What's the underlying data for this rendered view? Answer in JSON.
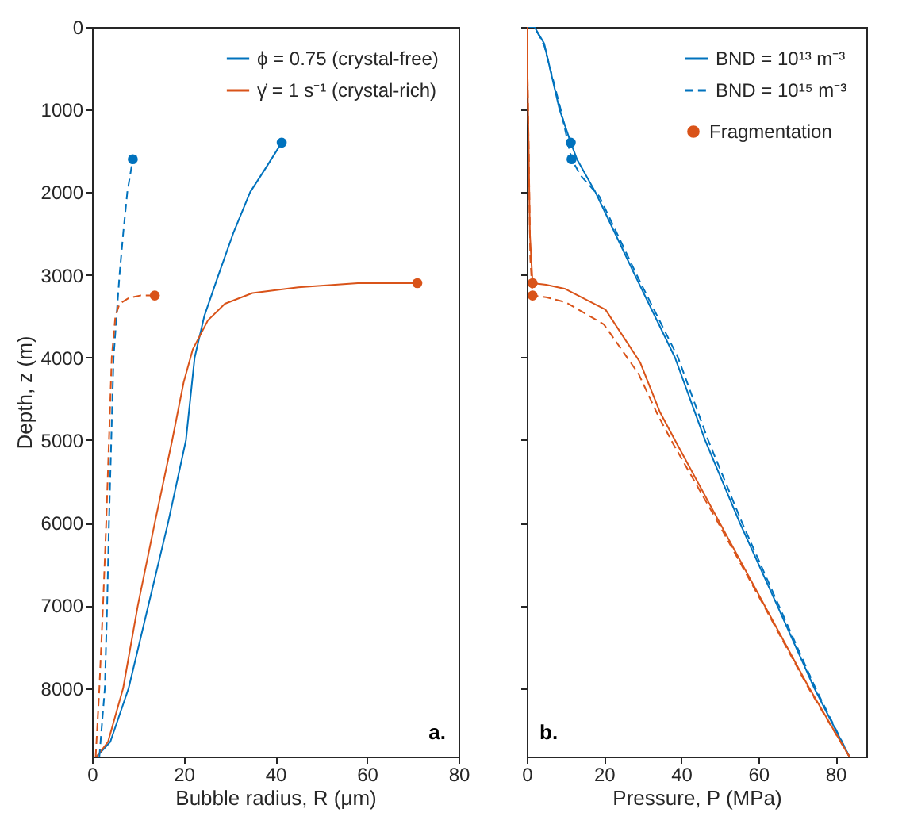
{
  "chart_data": [
    {
      "type": "line",
      "xlabel": "Bubble radius, R (μm)",
      "ylabel": "Depth, z (m)",
      "xlim": [
        0,
        80
      ],
      "xticks": [
        0,
        20,
        40,
        60,
        80
      ],
      "ylim": [
        8830,
        0
      ],
      "yticks": [
        0,
        1000,
        2000,
        3000,
        4000,
        5000,
        6000,
        7000,
        8000
      ],
      "legend": "top right",
      "annotations": [
        "a."
      ],
      "series": [
        {
          "name": "ϕ = 0.75 (crystal-free)",
          "color": "#0072bd",
          "line_style": "solid",
          "x": [
            1,
            4,
            8,
            12.3,
            16.6,
            20.5,
            22.4,
            24.5,
            27.6,
            30.8,
            34.5,
            38,
            41.4
          ],
          "values": [
            8830,
            8650,
            8000,
            7000,
            6000,
            5000,
            4000,
            3500,
            3000,
            2500,
            2000,
            1700,
            1400
          ]
        },
        {
          "name": "γ̇ = 1 s⁻¹ (crystal-rich)",
          "color": "#d95319",
          "line_style": "solid",
          "x": [
            1,
            3.5,
            6.8,
            10,
            13.7,
            17.5,
            20,
            22,
            25.3,
            29,
            35,
            45,
            58,
            71
          ],
          "values": [
            8830,
            8650,
            8000,
            7000,
            6000,
            5000,
            4300,
            3900,
            3550,
            3350,
            3220,
            3150,
            3100,
            3100
          ]
        },
        {
          "color": "#0072bd",
          "line_style": "dashed",
          "x": [
            1.6,
            2.8,
            3.3,
            3.7,
            4.2,
            4.7,
            6,
            6.8,
            7.7,
            8.9
          ],
          "values": [
            8830,
            8000,
            7000,
            6000,
            5000,
            4000,
            3000,
            2500,
            2000,
            1600
          ]
        },
        {
          "color": "#d95319",
          "line_style": "dashed",
          "x": [
            0.8,
            1.6,
            2.4,
            3.1,
            3.7,
            4.3,
            5.1,
            6,
            8,
            10.5,
            13.7
          ],
          "values": [
            8830,
            8000,
            7000,
            6000,
            5000,
            4000,
            3500,
            3350,
            3280,
            3250,
            3250
          ]
        },
        {
          "type": "scatter",
          "colors": [
            "#0072bd",
            "#0072bd",
            "#d95319",
            "#d95319"
          ],
          "x": [
            41.4,
            8.9,
            71,
            13.7
          ],
          "values": [
            1400,
            1600,
            3100,
            3250
          ]
        }
      ]
    },
    {
      "type": "line",
      "xlabel": "Pressure, P (MPa)",
      "xlim": [
        0,
        88
      ],
      "xticks": [
        0,
        20,
        40,
        60,
        80
      ],
      "ylim": [
        8830,
        0
      ],
      "yticks": [
        0,
        1000,
        2000,
        3000,
        4000,
        5000,
        6000,
        7000,
        8000
      ],
      "tick_labels": "x",
      "legend": "top right",
      "annotations": [
        "b."
      ],
      "series": [
        {
          "type": "scatter",
          "name": "Fragmentation",
          "colors": [
            "#d95319",
            "#d95319",
            "#0072bd",
            "#0072bd"
          ],
          "x": [
            1.5,
            1.5,
            11.4,
            11.6
          ],
          "values": [
            3100,
            3250,
            1400,
            1600
          ]
        },
        {
          "name": "BND = 10¹³ m⁻³",
          "color": "#0072bd",
          "line_style": "solid",
          "x": [
            0,
            2,
            4.5,
            6.5,
            8.5,
            11.4,
            13,
            17.8,
            28,
            38.4,
            46.2,
            55.2,
            64.9,
            74.5,
            83.6
          ],
          "values": [
            0,
            0,
            200,
            600,
            1000,
            1400,
            1600,
            2000,
            3000,
            4000,
            5000,
            6000,
            7000,
            8000,
            8830
          ]
        },
        {
          "name": "BND = 10¹⁵ m⁻³",
          "color": "#0072bd",
          "line_style": "dashed",
          "x": [
            0,
            2,
            4.5,
            6.7,
            8.8,
            11.6,
            14,
            18.8,
            29,
            39.2,
            47,
            55.8,
            65.3,
            74.8,
            83.6
          ],
          "values": [
            0,
            0,
            220,
            620,
            1000,
            1600,
            1800,
            2050,
            3050,
            4000,
            5000,
            6000,
            7000,
            8000,
            8830
          ]
        },
        {
          "color": "#d95319",
          "line_style": "solid",
          "x": [
            0,
            0.5,
            0.8,
            1.5,
            5,
            10,
            20.4,
            29.4,
            34.5,
            38.4,
            50,
            61.6,
            73.2,
            83.6
          ],
          "values": [
            0,
            1500,
            2500,
            3100,
            3120,
            3170,
            3420,
            4060,
            4660,
            5000,
            6000,
            7000,
            8000,
            8830
          ]
        },
        {
          "color": "#d95319",
          "line_style": "dashed",
          "x": [
            0,
            0.5,
            0.9,
            1.5,
            5,
            10,
            20,
            29,
            34,
            38,
            49.6,
            61.4,
            73,
            83.6
          ],
          "values": [
            0,
            1500,
            2800,
            3250,
            3270,
            3330,
            3600,
            4200,
            4700,
            5050,
            6000,
            7000,
            8000,
            8830
          ]
        }
      ]
    }
  ]
}
